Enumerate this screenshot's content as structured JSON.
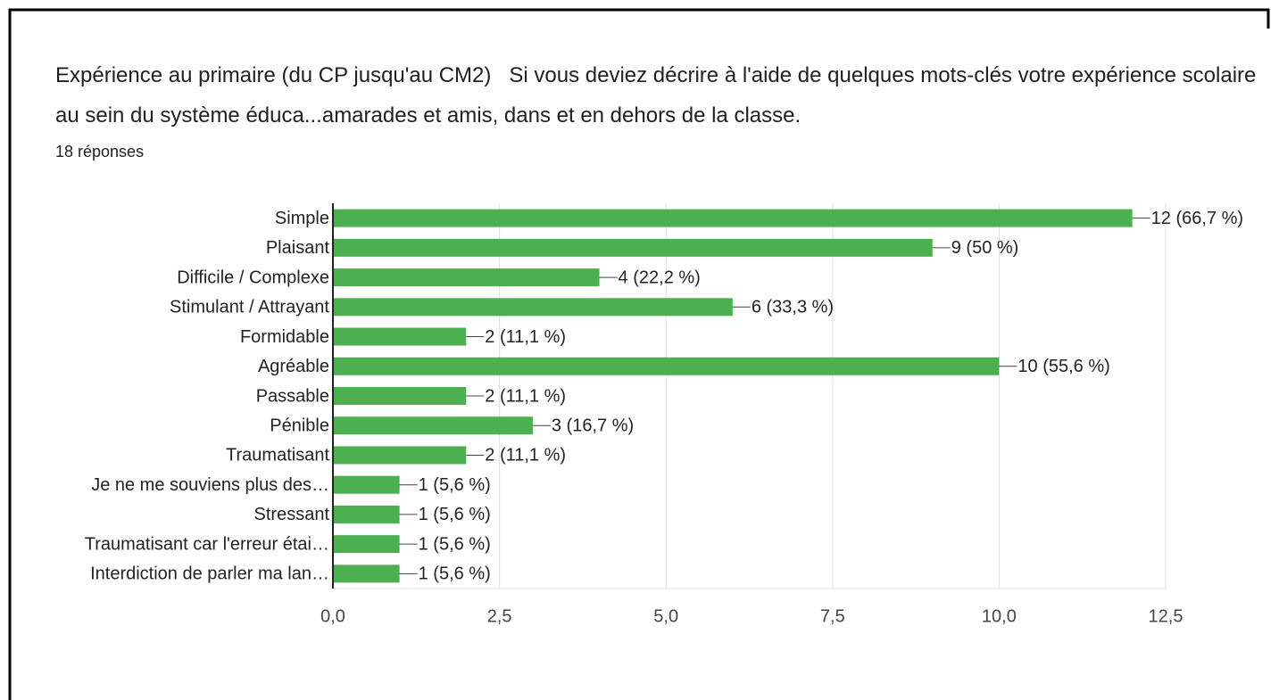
{
  "chart_data": {
    "type": "barh",
    "title": "Expérience au primaire (du CP jusqu'au CM2)   Si vous deviez décrire à l'aide de quelques mots-clés votre expérience scolaire au sein du système éduca...amarades et amis, dans et en dehors de la classe.",
    "subtitle": "18 réponses",
    "categories": [
      "Simple",
      "Plaisant",
      "Difficile / Complexe",
      "Stimulant / Attrayant",
      "Formidable",
      "Agréable",
      "Passable",
      "Pénible",
      "Traumatisant",
      "Je ne me souviens plus des…",
      "Stressant",
      "Traumatisant car l'erreur étai…",
      "Interdiction de parler ma lan…"
    ],
    "values": [
      12,
      9,
      4,
      6,
      2,
      10,
      2,
      3,
      2,
      1,
      1,
      1,
      1
    ],
    "value_labels": [
      "12 (66,7 %)",
      "9 (50 %)",
      "4 (22,2 %)",
      "6 (33,3 %)",
      "2 (11,1 %)",
      "10 (55,6 %)",
      "2 (11,1 %)",
      "3 (16,7 %)",
      "2 (11,1 %)",
      "1 (5,6 %)",
      "1 (5,6 %)",
      "1 (5,6 %)",
      "1 (5,6 %)"
    ],
    "color": "#4caf50",
    "xlim": [
      0,
      12.5
    ],
    "xticks": [
      {
        "value": 0,
        "label": "0,0"
      },
      {
        "value": 2.5,
        "label": "2,5"
      },
      {
        "value": 5,
        "label": "5,0"
      },
      {
        "value": 7.5,
        "label": "7,5"
      },
      {
        "value": 10,
        "label": "10,0"
      },
      {
        "value": 12.5,
        "label": "12,5"
      }
    ],
    "grid": true
  }
}
